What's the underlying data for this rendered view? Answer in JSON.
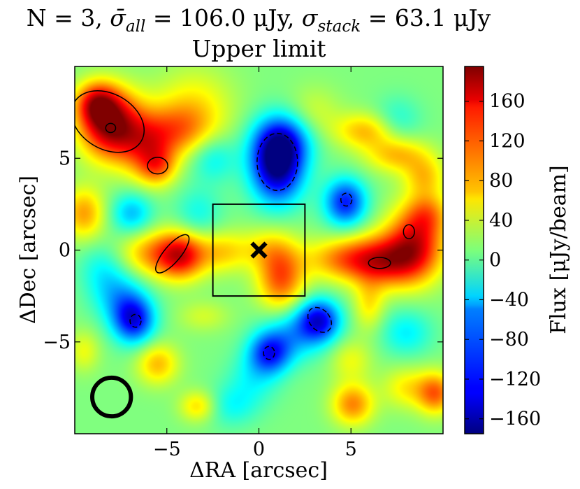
{
  "chart_data": {
    "type": "heatmap",
    "title_parts": {
      "n_label": "N = 3,",
      "sigma_all_symbol": "σ̄",
      "sigma_all_sub": "all",
      "sigma_all_value": "= 106.0 μJy,",
      "sigma_stack_symbol": "σ",
      "sigma_stack_sub": "stack",
      "sigma_stack_value": "= 63.1 μJy"
    },
    "subtitle": "Upper limit",
    "xlabel": "ΔRA [arcsec]",
    "ylabel": "ΔDec [arcsec]",
    "colorbar_label": "Flux [μJy/beam]",
    "xlim": [
      -10,
      10
    ],
    "ylim": [
      -10,
      10
    ],
    "xticks": [
      {
        "value": -5,
        "label": "−5"
      },
      {
        "value": 0,
        "label": "0"
      },
      {
        "value": 5,
        "label": "5"
      }
    ],
    "yticks": [
      {
        "value": 5,
        "label": "5"
      },
      {
        "value": 0,
        "label": "0"
      },
      {
        "value": -5,
        "label": "−5"
      }
    ],
    "colorbar_range": [
      -175,
      195
    ],
    "colorbar_ticks": [
      {
        "value": 160,
        "label": "160"
      },
      {
        "value": 120,
        "label": "120"
      },
      {
        "value": 80,
        "label": "80"
      },
      {
        "value": 40,
        "label": "40"
      },
      {
        "value": 0,
        "label": "0"
      },
      {
        "value": -40,
        "label": "−40"
      },
      {
        "value": -80,
        "label": "−80"
      },
      {
        "value": -120,
        "label": "−120"
      },
      {
        "value": -160,
        "label": "−160"
      }
    ],
    "colormap": "jet",
    "background_level": 10,
    "blobs": [
      {
        "x": -8.0,
        "y": 6.8,
        "sx": 1.2,
        "sy": 1.3,
        "amp": 180
      },
      {
        "x": -8.8,
        "y": 8.0,
        "sx": 0.8,
        "sy": 0.8,
        "amp": 110
      },
      {
        "x": -6.0,
        "y": 5.5,
        "sx": 1.0,
        "sy": 1.2,
        "amp": 90
      },
      {
        "x": -4.4,
        "y": 6.5,
        "sx": 1.3,
        "sy": 1.0,
        "amp": 70
      },
      {
        "x": -5.5,
        "y": 4.5,
        "sx": 0.7,
        "sy": 0.7,
        "amp": 60
      },
      {
        "x": -3.5,
        "y": 7.8,
        "sx": 1.5,
        "sy": 1.5,
        "amp": 50
      },
      {
        "x": -5.7,
        "y": -0.2,
        "sx": 1.3,
        "sy": 0.9,
        "amp": 80
      },
      {
        "x": -4.2,
        "y": -0.3,
        "sx": 0.9,
        "sy": 0.9,
        "amp": 120
      },
      {
        "x": -9.5,
        "y": 2.0,
        "sx": 0.8,
        "sy": 1.0,
        "amp": 80
      },
      {
        "x": -2.0,
        "y": -0.1,
        "sx": 1.0,
        "sy": 0.8,
        "amp": 60
      },
      {
        "x": 1.2,
        "y": -1.5,
        "sx": 0.9,
        "sy": 1.3,
        "amp": 110
      },
      {
        "x": 0.3,
        "y": 0.1,
        "sx": 1.0,
        "sy": 0.8,
        "amp": 40
      },
      {
        "x": 4.6,
        "y": -0.5,
        "sx": 1.5,
        "sy": 0.8,
        "amp": 80
      },
      {
        "x": 6.8,
        "y": -0.6,
        "sx": 1.4,
        "sy": 1.0,
        "amp": 120
      },
      {
        "x": 8.5,
        "y": 0.4,
        "sx": 1.1,
        "sy": 1.4,
        "amp": 130
      },
      {
        "x": 9.2,
        "y": 2.0,
        "sx": 0.8,
        "sy": 0.8,
        "amp": 60
      },
      {
        "x": 5.8,
        "y": 6.5,
        "sx": 1.2,
        "sy": 0.7,
        "amp": 70
      },
      {
        "x": 7.5,
        "y": 5.2,
        "sx": 1.2,
        "sy": 0.7,
        "amp": 70
      },
      {
        "x": 9.0,
        "y": 4.0,
        "sx": 0.8,
        "sy": 0.8,
        "amp": 60
      },
      {
        "x": 3.0,
        "y": 7.5,
        "sx": 1.0,
        "sy": 1.0,
        "amp": 30
      },
      {
        "x": 6.0,
        "y": -3.0,
        "sx": 0.6,
        "sy": 1.0,
        "amp": 50
      },
      {
        "x": 5.0,
        "y": -6.0,
        "sx": 0.8,
        "sy": 0.8,
        "amp": 40
      },
      {
        "x": 8.0,
        "y": -7.5,
        "sx": 0.9,
        "sy": 0.8,
        "amp": 50
      },
      {
        "x": 9.6,
        "y": -7.8,
        "sx": 0.7,
        "sy": 0.8,
        "amp": 100
      },
      {
        "x": 5.1,
        "y": -8.4,
        "sx": 0.8,
        "sy": 0.8,
        "amp": 90
      },
      {
        "x": -5.5,
        "y": -6.2,
        "sx": 0.8,
        "sy": 0.8,
        "amp": 70
      },
      {
        "x": -3.3,
        "y": -8.5,
        "sx": 0.7,
        "sy": 0.6,
        "amp": 60
      },
      {
        "x": -3.0,
        "y": -3.6,
        "sx": 1.0,
        "sy": 0.6,
        "amp": 30
      },
      {
        "x": -9.5,
        "y": -5.5,
        "sx": 0.6,
        "sy": 0.8,
        "amp": 40
      },
      {
        "x": 1.0,
        "y": 4.6,
        "sx": 1.0,
        "sy": 1.4,
        "amp": -185
      },
      {
        "x": 1.3,
        "y": 6.0,
        "sx": 1.1,
        "sy": 1.0,
        "amp": -90
      },
      {
        "x": 4.7,
        "y": 2.6,
        "sx": 0.8,
        "sy": 0.9,
        "amp": -130
      },
      {
        "x": 3.3,
        "y": -3.8,
        "sx": 0.8,
        "sy": 0.8,
        "amp": -130
      },
      {
        "x": 2.0,
        "y": -4.5,
        "sx": 1.2,
        "sy": 1.0,
        "amp": -70
      },
      {
        "x": 0.6,
        "y": -5.6,
        "sx": 0.8,
        "sy": 0.8,
        "amp": -120
      },
      {
        "x": -6.8,
        "y": -3.8,
        "sx": 0.8,
        "sy": 0.9,
        "amp": -140
      },
      {
        "x": -7.6,
        "y": -2.5,
        "sx": 1.0,
        "sy": 1.0,
        "amp": -60
      },
      {
        "x": -6.9,
        "y": 2.0,
        "sx": 0.8,
        "sy": 0.8,
        "amp": -70
      },
      {
        "x": -2.5,
        "y": 5.0,
        "sx": 0.9,
        "sy": 0.9,
        "amp": -50
      },
      {
        "x": -3.3,
        "y": 2.0,
        "sx": 0.9,
        "sy": 1.0,
        "amp": -40
      },
      {
        "x": -0.3,
        "y": -7.0,
        "sx": 1.0,
        "sy": 1.0,
        "amp": -40
      },
      {
        "x": 7.5,
        "y": 7.0,
        "sx": 0.9,
        "sy": 0.9,
        "amp": -40
      },
      {
        "x": 8.0,
        "y": -4.5,
        "sx": 1.0,
        "sy": 0.9,
        "amp": -50
      },
      {
        "x": -1.5,
        "y": -8.5,
        "sx": 1.0,
        "sy": 0.8,
        "amp": -40
      },
      {
        "x": -8.5,
        "y": -1.0,
        "sx": 0.9,
        "sy": 1.0,
        "amp": -40
      }
    ],
    "contours": [
      {
        "style": "solid",
        "cx": -8.2,
        "cy": 7.0,
        "rx": 2.1,
        "ry": 1.5,
        "angle": -30
      },
      {
        "style": "solid",
        "cx": -8.05,
        "cy": 6.65,
        "rx": 0.27,
        "ry": 0.25,
        "angle": 0
      },
      {
        "style": "solid",
        "cx": -5.5,
        "cy": 4.6,
        "rx": 0.55,
        "ry": 0.45,
        "angle": 0
      },
      {
        "style": "solid",
        "cx": -4.7,
        "cy": -0.2,
        "rx": 1.3,
        "ry": 0.45,
        "angle": 50
      },
      {
        "style": "solid",
        "cx": 6.55,
        "cy": -0.7,
        "rx": 0.6,
        "ry": 0.3,
        "angle": 0
      },
      {
        "style": "solid",
        "cx": 8.15,
        "cy": 1.0,
        "rx": 0.3,
        "ry": 0.38,
        "angle": 0
      },
      {
        "style": "dashed",
        "cx": 1.0,
        "cy": 4.8,
        "rx": 1.1,
        "ry": 1.55,
        "angle": 0
      },
      {
        "style": "dashed",
        "cx": 4.75,
        "cy": 2.75,
        "rx": 0.3,
        "ry": 0.35,
        "angle": 0
      },
      {
        "style": "dashed",
        "cx": -6.7,
        "cy": -3.85,
        "rx": 0.3,
        "ry": 0.35,
        "angle": 0
      },
      {
        "style": "dashed",
        "cx": 3.3,
        "cy": -3.8,
        "rx": 0.55,
        "ry": 0.75,
        "angle": 40
      },
      {
        "style": "dashed",
        "cx": 0.55,
        "cy": -5.6,
        "rx": 0.3,
        "ry": 0.35,
        "angle": 0
      }
    ],
    "stack_box": {
      "x0": -2.5,
      "x1": 2.5,
      "y0": -2.5,
      "y1": 2.5
    },
    "center_marker": {
      "x": 0,
      "y": 0,
      "symbol": "x"
    },
    "beam": {
      "x": -8.0,
      "y": -8.0,
      "radius": 1.05
    }
  }
}
